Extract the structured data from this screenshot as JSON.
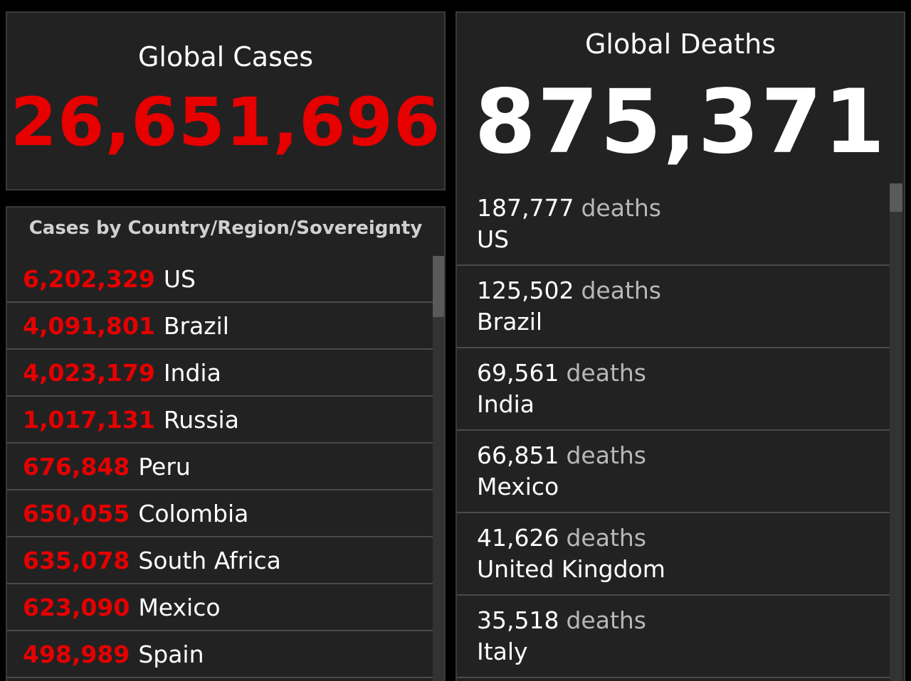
{
  "global_cases": {
    "title": "Global Cases",
    "value": "26,651,696"
  },
  "cases_by_country": {
    "title": "Cases by Country/Region/Sovereignty",
    "rows": [
      {
        "count": "6,202,329",
        "country": "US"
      },
      {
        "count": "4,091,801",
        "country": "Brazil"
      },
      {
        "count": "4,023,179",
        "country": "India"
      },
      {
        "count": "1,017,131",
        "country": "Russia"
      },
      {
        "count": "676,848",
        "country": "Peru"
      },
      {
        "count": "650,055",
        "country": "Colombia"
      },
      {
        "count": "635,078",
        "country": "South Africa"
      },
      {
        "count": "623,090",
        "country": "Mexico"
      },
      {
        "count": "498,989",
        "country": "Spain"
      }
    ]
  },
  "global_deaths": {
    "title": "Global Deaths",
    "value": "875,371",
    "unit_label": "deaths",
    "rows": [
      {
        "count": "187,777",
        "unit": "deaths",
        "country": "US"
      },
      {
        "count": "125,502",
        "unit": "deaths",
        "country": "Brazil"
      },
      {
        "count": "69,561",
        "unit": "deaths",
        "country": "India"
      },
      {
        "count": "66,851",
        "unit": "deaths",
        "country": "Mexico"
      },
      {
        "count": "41,626",
        "unit": "deaths",
        "country": "United Kingdom"
      },
      {
        "count": "35,518",
        "unit": "deaths",
        "country": "Italy"
      }
    ]
  },
  "colors": {
    "background": "#000000",
    "panel": "#222222",
    "case_red": "#e60000",
    "text_white": "#ffffff",
    "text_gray": "#b8b8b8"
  }
}
